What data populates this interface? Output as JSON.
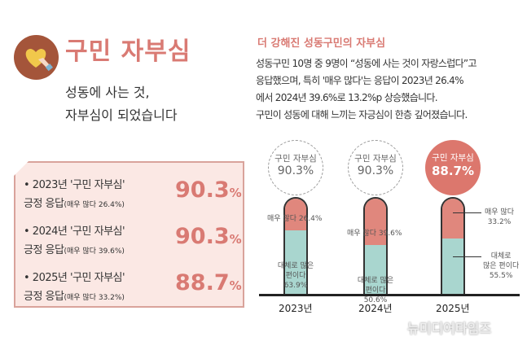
{
  "header": {
    "title": "구민 자부심",
    "subtitle_lines": [
      "성동에 사는 것,",
      "자부심이 되었습니다"
    ]
  },
  "card": {
    "rows": [
      {
        "line1": "• 2023년 '구민 자부심'",
        "line2": "긍정 응답",
        "note": "(매우 많다 26.4%)",
        "value": "90.3",
        "unit": "%"
      },
      {
        "line1": "• 2024년 '구민 자부심'",
        "line2": "긍정 응답",
        "note": "(매우 많다 39.6%)",
        "value": "90.3",
        "unit": "%"
      },
      {
        "line1": "• 2025년 '구민 자부심'",
        "line2": "긍정 응답",
        "note": "(매우 많다 33.2%)",
        "value": "88.7",
        "unit": "%"
      }
    ]
  },
  "right": {
    "title": "더 강해진 성동구민의 자부심",
    "paragraph": [
      "성동구민 10명 중 9명이 “성동에 사는 것이 자랑스럽다”고",
      "응답했으며, 특히 '매우 많다'는 응답이 2023년 26.4%",
      "에서 2024년 39.6%로 13.2%p 상승했습니다.",
      "구민이 성동에 대해 느끼는 자긍심이 한층 깊어졌습니다."
    ]
  },
  "chart_data": {
    "type": "bar",
    "stacked": true,
    "categories": [
      "2023년",
      "2024년",
      "2025년"
    ],
    "totals_label": "구민 자부심",
    "totals": [
      "90.3",
      "90.3",
      "88.7"
    ],
    "series": [
      {
        "name": "매우 많다",
        "values": [
          26.4,
          39.6,
          33.2
        ]
      },
      {
        "name": "대체로 많은 편이다",
        "values": [
          63.9,
          50.6,
          55.5
        ]
      }
    ],
    "colors": {
      "very": "#e0877d",
      "mostly": "#a9d6cf",
      "highlight": "#dc776d"
    }
  },
  "watermark": "뉴미디어타임즈"
}
